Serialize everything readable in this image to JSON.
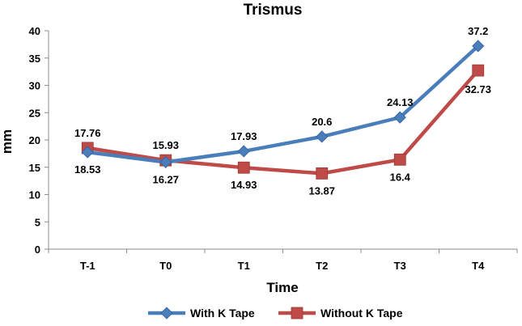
{
  "chart_data": {
    "type": "line",
    "title": "Trismus",
    "xlabel": "Time",
    "ylabel": "mm",
    "categories": [
      "T-1",
      "T0",
      "T1",
      "T2",
      "T3",
      "T4"
    ],
    "ylim": [
      0,
      40
    ],
    "yticks": [
      0,
      5,
      10,
      15,
      20,
      25,
      30,
      35,
      40
    ],
    "grid": false,
    "legend_position": "bottom",
    "series": [
      {
        "name": "With K Tape",
        "values": [
          17.76,
          15.93,
          17.93,
          20.6,
          24.13,
          37.2
        ],
        "labels": [
          "17.76",
          "15.93",
          "17.93",
          "20.6",
          "24.13",
          "37.2"
        ],
        "label_side": [
          "above",
          "above",
          "above",
          "above",
          "above",
          "above"
        ],
        "color": "#4a7ebb",
        "marker": "diamond"
      },
      {
        "name": "Without K Tape",
        "values": [
          18.53,
          16.27,
          14.93,
          13.87,
          16.4,
          32.73
        ],
        "labels": [
          "18.53",
          "16.27",
          "14.93",
          "13.87",
          "16.4",
          "32.73"
        ],
        "label_side": [
          "below",
          "below",
          "below",
          "below",
          "below",
          "below"
        ],
        "color": "#be4b48",
        "marker": "square"
      }
    ]
  }
}
